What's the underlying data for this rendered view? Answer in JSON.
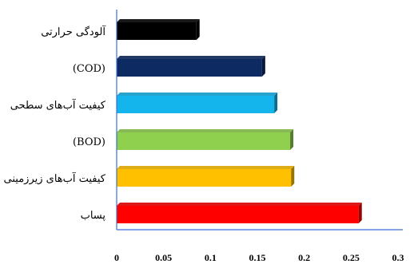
{
  "chart_data": {
    "type": "bar",
    "orientation": "horizontal",
    "categories": [
      "آلودگی حرارتی",
      "(COD)",
      "کیفیت آب‌های سطحی",
      "(BOD)",
      "کیفیت آب‌های زیرزمینی",
      "پساب"
    ],
    "values": [
      0.085,
      0.155,
      0.168,
      0.185,
      0.186,
      0.258
    ],
    "colors": [
      "#000000",
      "#0d2a63",
      "#14b4ec",
      "#8fd14f",
      "#ffc000",
      "#ff0000"
    ],
    "xlim": [
      0,
      0.3
    ],
    "xticks": [
      0,
      0.05,
      0.1,
      0.15,
      0.2,
      0.25,
      0.3
    ],
    "xtick_labels": [
      "0",
      "0.05",
      "0.1",
      "0.15",
      "0.2",
      "0.25",
      "0.3"
    ],
    "grid": false,
    "legend": "none",
    "title": "",
    "xlabel": "",
    "ylabel": ""
  }
}
